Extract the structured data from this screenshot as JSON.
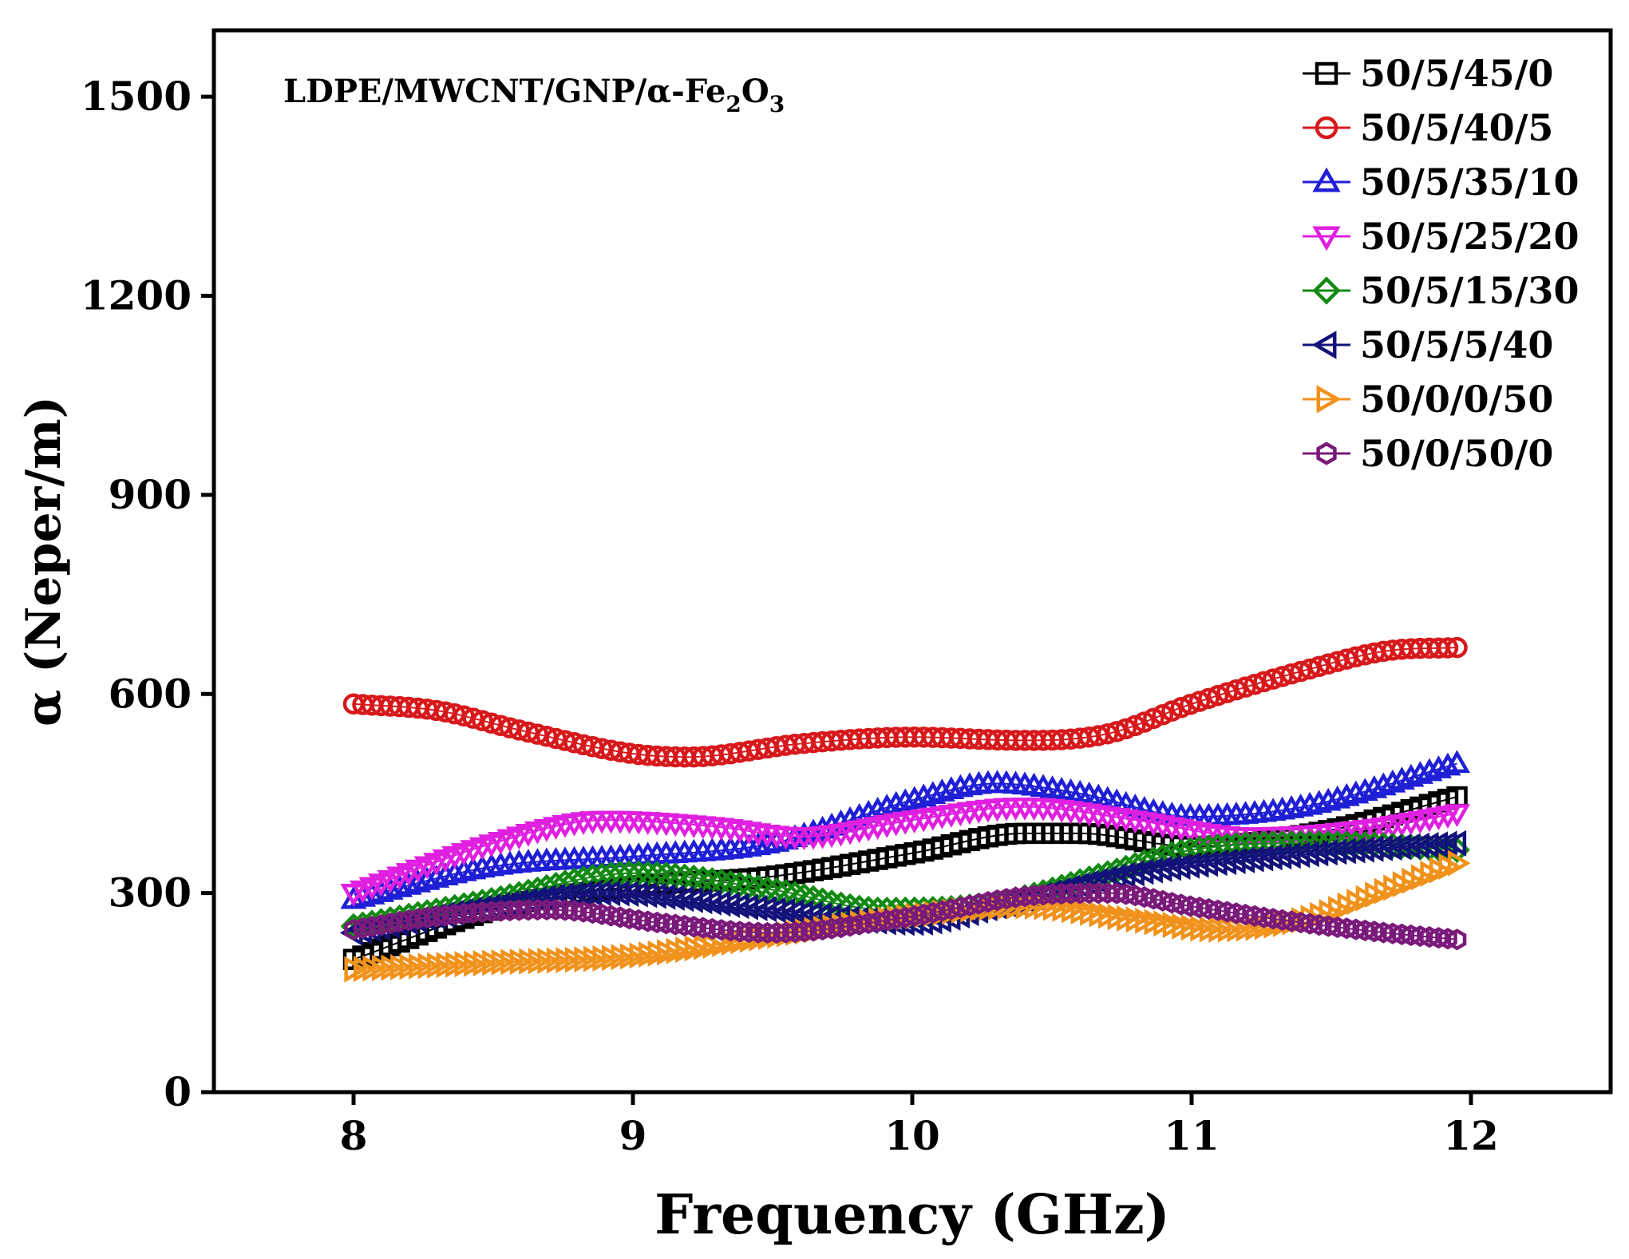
{
  "chart_data": {
    "type": "scatter",
    "title": "",
    "annotation": {
      "prefix": "LDPE/MWCNT/GNP/",
      "alpha": "α",
      "fe": "-Fe",
      "sub1": "2",
      "o": "O",
      "sub2": "3"
    },
    "xlabel": "Frequency (GHz)",
    "ylabel": "α  (Neper/m)",
    "xlim": [
      7.5,
      12.5
    ],
    "ylim": [
      0,
      1600
    ],
    "xticks": [
      8,
      9,
      10,
      11,
      12
    ],
    "xtick_labels": [
      "8",
      "9",
      "10",
      "11",
      "12"
    ],
    "yticks": [
      0,
      300,
      600,
      900,
      1200,
      1500
    ],
    "ytick_labels": [
      "0",
      "300",
      "600",
      "900",
      "1200",
      "1500"
    ],
    "x_range": [
      8.0,
      11.95
    ],
    "legend_position": "top-right",
    "series": [
      {
        "name": "50/5/45/0",
        "marker": "square",
        "color": "#000000",
        "x": [
          8.0,
          8.5,
          9.0,
          9.5,
          10.0,
          10.4,
          10.6,
          11.0,
          11.5,
          11.95
        ],
        "values": [
          200,
          275,
          310,
          325,
          360,
          390,
          390,
          370,
          395,
          445
        ]
      },
      {
        "name": "50/5/40/5",
        "marker": "circle",
        "color": "#d7191c",
        "x": [
          8.0,
          8.3,
          8.6,
          9.0,
          9.2,
          9.6,
          10.0,
          10.4,
          10.7,
          11.0,
          11.4,
          11.7,
          11.95
        ],
        "values": [
          585,
          575,
          545,
          510,
          505,
          525,
          535,
          530,
          540,
          585,
          635,
          665,
          670
        ]
      },
      {
        "name": "50/5/35/10",
        "marker": "triangle-up",
        "color": "#1f1fd6",
        "x": [
          8.0,
          8.5,
          9.0,
          9.5,
          10.0,
          10.3,
          10.6,
          11.0,
          11.4,
          11.95
        ],
        "values": [
          290,
          340,
          355,
          375,
          440,
          465,
          450,
          415,
          430,
          495
        ]
      },
      {
        "name": "50/5/25/20",
        "marker": "triangle-down",
        "color": "#e020e0",
        "x": [
          8.0,
          8.5,
          8.9,
          9.3,
          9.6,
          10.0,
          10.4,
          10.8,
          11.2,
          11.6,
          11.95
        ],
        "values": [
          300,
          375,
          410,
          400,
          385,
          410,
          430,
          410,
          385,
          395,
          420
        ]
      },
      {
        "name": "50/5/15/30",
        "marker": "diamond",
        "color": "#138a13",
        "x": [
          8.0,
          8.5,
          9.0,
          9.5,
          9.9,
          10.3,
          10.7,
          11.0,
          11.5,
          11.95
        ],
        "values": [
          250,
          290,
          330,
          305,
          275,
          285,
          330,
          365,
          375,
          365
        ]
      },
      {
        "name": "50/5/5/40",
        "marker": "triangle-left",
        "color": "#12127a",
        "x": [
          8.0,
          8.5,
          8.9,
          9.5,
          10.0,
          10.3,
          10.8,
          11.2,
          11.6,
          11.95
        ],
        "values": [
          240,
          280,
          300,
          275,
          255,
          280,
          330,
          350,
          365,
          375
        ]
      },
      {
        "name": "50/0/0/50",
        "marker": "triangle-right",
        "color": "#f0921c",
        "x": [
          8.0,
          8.5,
          9.0,
          9.5,
          10.0,
          10.4,
          10.8,
          11.1,
          11.4,
          11.7,
          11.95
        ],
        "values": [
          185,
          195,
          205,
          235,
          265,
          280,
          260,
          245,
          260,
          305,
          345
        ]
      },
      {
        "name": "50/0/50/0",
        "marker": "hexagon",
        "color": "#7a1a7a",
        "x": [
          8.0,
          8.3,
          8.7,
          9.1,
          9.5,
          10.0,
          10.4,
          10.7,
          11.0,
          11.4,
          11.7,
          11.95
        ],
        "values": [
          245,
          265,
          275,
          255,
          240,
          265,
          295,
          300,
          280,
          255,
          240,
          230
        ]
      }
    ]
  }
}
